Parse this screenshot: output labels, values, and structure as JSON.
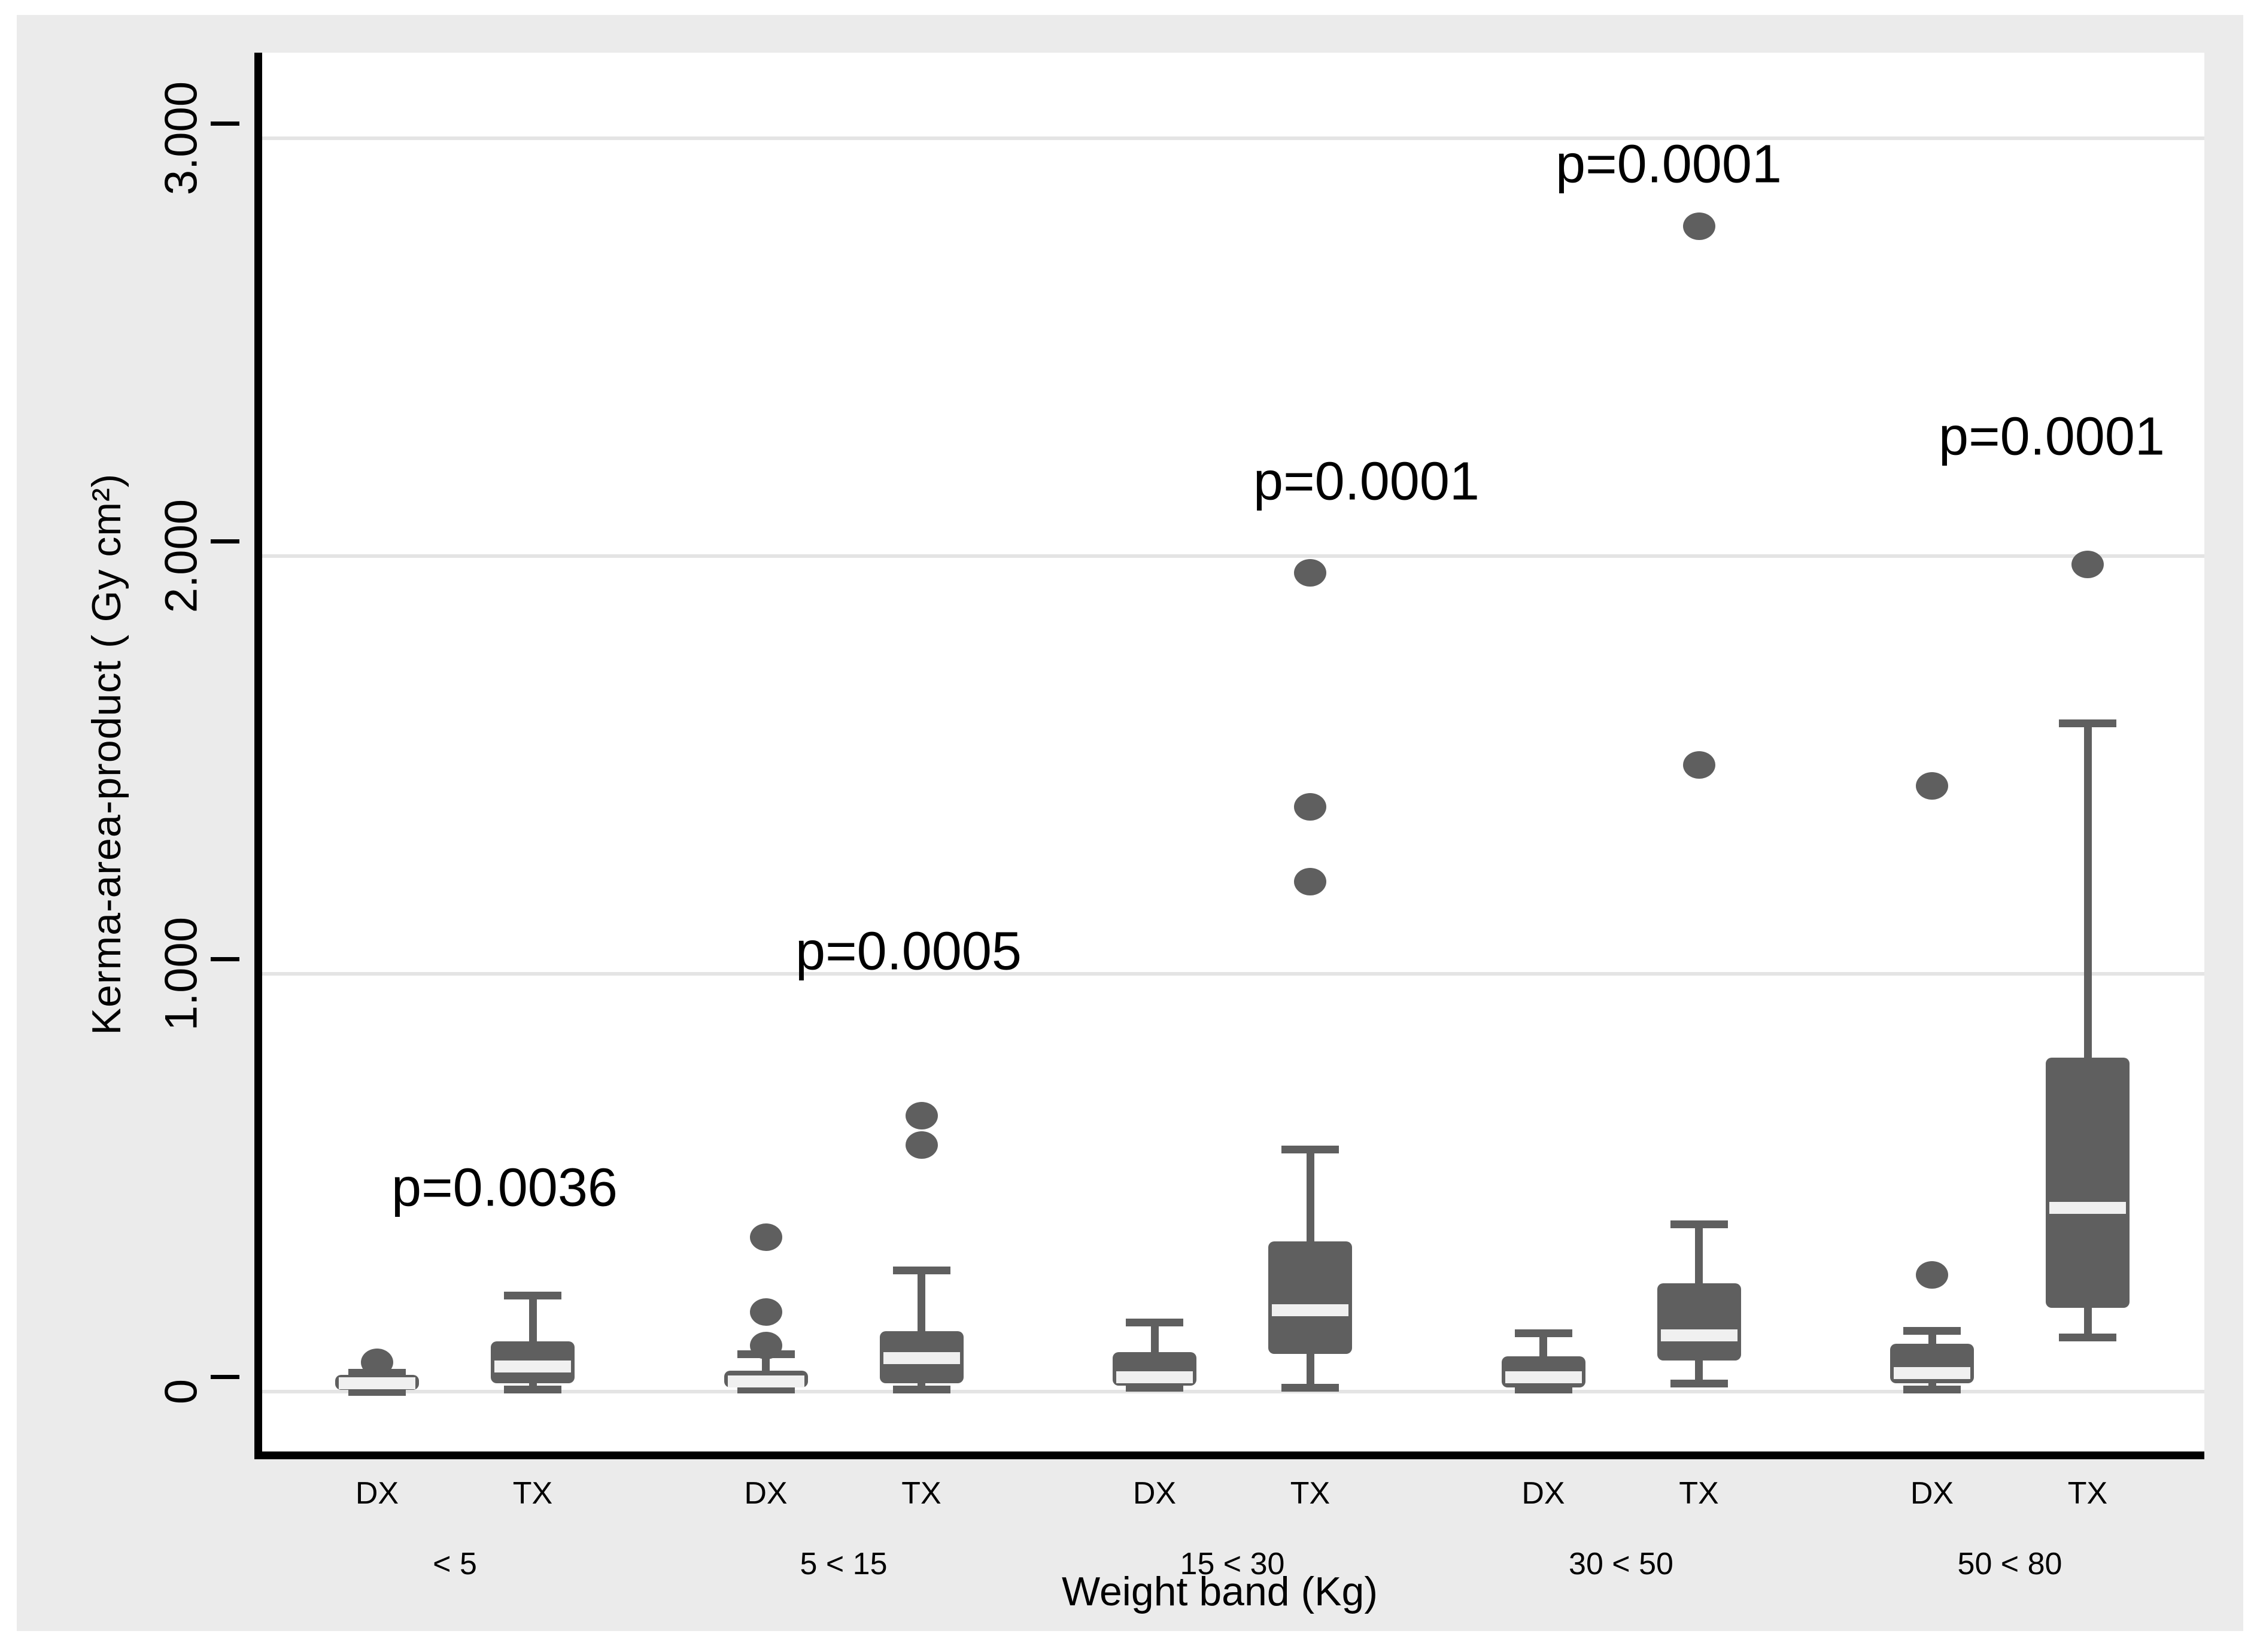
{
  "chart_data": {
    "type": "box",
    "title": "",
    "ylabel": "Kerma-area-product ( Gy cm²)",
    "xlabel": "Weight band (Kg)",
    "legend_position": "none",
    "grid": "horizontal",
    "ylim": [
      -0.15,
      3.15
    ],
    "y_ticks": [
      {
        "label": "0",
        "value": 0
      },
      {
        "label": "1.000",
        "value": 1
      },
      {
        "label": "2.000",
        "value": 2
      },
      {
        "label": "3.000",
        "value": 3
      }
    ],
    "series_labels": [
      "DX",
      "TX"
    ],
    "groups": [
      {
        "band": "< 5",
        "p_text": "p=0.0036",
        "p_pos": {
          "x": 815,
          "y": 1960
        },
        "boxes": [
          {
            "series": "DX",
            "whisker_low": 0.0,
            "q1": 0.005,
            "median": 0.02,
            "q3": 0.04,
            "whisker_high": 0.045,
            "outliers": [
              0.07
            ]
          },
          {
            "series": "TX",
            "whisker_low": 0.005,
            "q1": 0.02,
            "median": 0.06,
            "q3": 0.12,
            "whisker_high": 0.23,
            "outliers": []
          }
        ]
      },
      {
        "band": "5 < 15",
        "p_text": "p=0.0005",
        "p_pos": {
          "x": 1490,
          "y": 1565
        },
        "boxes": [
          {
            "series": "DX",
            "whisker_low": 0.005,
            "q1": 0.01,
            "median": 0.025,
            "q3": 0.05,
            "whisker_high": 0.09,
            "outliers": [
              0.11,
              0.19,
              0.37
            ]
          },
          {
            "series": "TX",
            "whisker_low": 0.005,
            "q1": 0.02,
            "median": 0.08,
            "q3": 0.145,
            "whisker_high": 0.29,
            "outliers": [
              0.59,
              0.66
            ]
          }
        ]
      },
      {
        "band": "15 < 30",
        "p_text": "p=0.0001",
        "p_pos": {
          "x": 2255,
          "y": 780
        },
        "boxes": [
          {
            "series": "DX",
            "whisker_low": 0.01,
            "q1": 0.015,
            "median": 0.035,
            "q3": 0.095,
            "whisker_high": 0.165,
            "outliers": []
          },
          {
            "series": "TX",
            "whisker_low": 0.01,
            "q1": 0.09,
            "median": 0.195,
            "q3": 0.36,
            "whisker_high": 0.58,
            "outliers": [
              1.22,
              1.4,
              1.96
            ]
          }
        ]
      },
      {
        "band": "30 < 50",
        "p_text": "p=0.0001",
        "p_pos": {
          "x": 2760,
          "y": 250
        },
        "boxes": [
          {
            "series": "DX",
            "whisker_low": 0.005,
            "q1": 0.01,
            "median": 0.035,
            "q3": 0.085,
            "whisker_high": 0.14,
            "outliers": []
          },
          {
            "series": "TX",
            "whisker_low": 0.02,
            "q1": 0.075,
            "median": 0.135,
            "q3": 0.26,
            "whisker_high": 0.4,
            "outliers": [
              1.5,
              2.79
            ]
          }
        ]
      },
      {
        "band": "50 < 80",
        "p_text": "p=0.0001",
        "p_pos": {
          "x": 3400,
          "y": 705
        },
        "boxes": [
          {
            "series": "DX",
            "whisker_low": 0.005,
            "q1": 0.02,
            "median": 0.045,
            "q3": 0.115,
            "whisker_high": 0.145,
            "outliers": [
              0.28,
              1.45
            ]
          },
          {
            "series": "TX",
            "whisker_low": 0.13,
            "q1": 0.2,
            "median": 0.44,
            "q3": 0.8,
            "whisker_high": 1.6,
            "outliers": [
              1.98
            ]
          }
        ]
      }
    ],
    "colors": {
      "box_fill": "#5f5f5f",
      "median_stripe": "#f0f0f0",
      "gridline": "#e4e4e4",
      "panel_background": "#ebebeb",
      "plot_background": "#ffffff",
      "axis": "#000000",
      "text": "#000000"
    }
  }
}
